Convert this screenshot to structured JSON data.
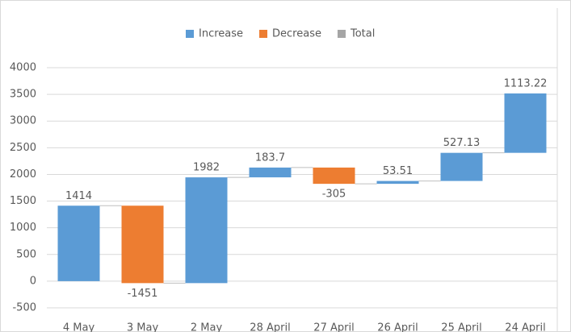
{
  "chart_data": {
    "type": "waterfall",
    "categories": [
      "4 May",
      "3 May",
      "2 May",
      "28 April",
      "27 April",
      "26 April",
      "25 April",
      "24 April"
    ],
    "values": [
      1414,
      -1451,
      1982,
      183.7,
      -305,
      53.51,
      527.13,
      1113.22
    ],
    "legend": [
      {
        "name": "Increase",
        "color": "#5b9bd5"
      },
      {
        "name": "Decrease",
        "color": "#ed7d31"
      },
      {
        "name": "Total",
        "color": "#a5a5a5"
      }
    ],
    "ylim": [
      -500,
      4000
    ],
    "yticks": [
      -500,
      0,
      500,
      1000,
      1500,
      2000,
      2500,
      3000,
      3500,
      4000
    ],
    "grid": true
  }
}
